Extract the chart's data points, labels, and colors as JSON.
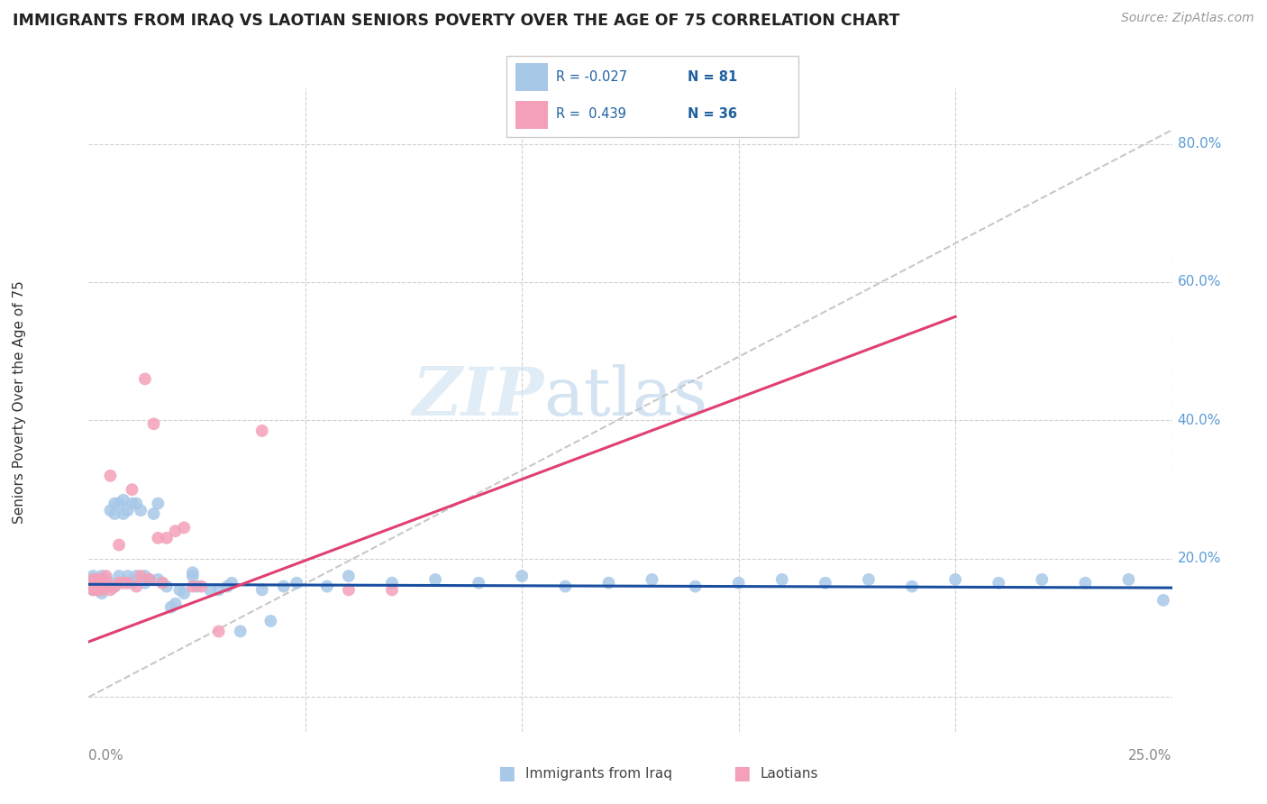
{
  "title": "IMMIGRANTS FROM IRAQ VS LAOTIAN SENIORS POVERTY OVER THE AGE OF 75 CORRELATION CHART",
  "source": "Source: ZipAtlas.com",
  "ylabel": "Seniors Poverty Over the Age of 75",
  "right_yticks": [
    "80.0%",
    "60.0%",
    "40.0%",
    "20.0%"
  ],
  "right_ytick_vals": [
    0.8,
    0.6,
    0.4,
    0.2
  ],
  "xlim": [
    0.0,
    0.25
  ],
  "ylim": [
    -0.05,
    0.88
  ],
  "watermark_zip": "ZIP",
  "watermark_atlas": "atlas",
  "color_iraq": "#a8c8e8",
  "color_laotian": "#f4a0b8",
  "color_iraq_line": "#1a4fa0",
  "color_laotian_line": "#e04070",
  "color_diag_line": "#c8c8c8",
  "iraq_x": [
    0.001,
    0.001,
    0.001,
    0.001,
    0.001,
    0.002,
    0.002,
    0.002,
    0.002,
    0.002,
    0.002,
    0.003,
    0.003,
    0.003,
    0.003,
    0.004,
    0.004,
    0.004,
    0.004,
    0.005,
    0.005,
    0.005,
    0.006,
    0.006,
    0.006,
    0.007,
    0.007,
    0.008,
    0.008,
    0.009,
    0.009,
    0.01,
    0.01,
    0.011,
    0.011,
    0.012,
    0.013,
    0.013,
    0.014,
    0.015,
    0.016,
    0.016,
    0.017,
    0.018,
    0.019,
    0.02,
    0.021,
    0.022,
    0.024,
    0.024,
    0.025,
    0.028,
    0.03,
    0.032,
    0.033,
    0.035,
    0.04,
    0.042,
    0.045,
    0.048,
    0.055,
    0.06,
    0.07,
    0.08,
    0.09,
    0.1,
    0.11,
    0.12,
    0.13,
    0.14,
    0.15,
    0.16,
    0.17,
    0.18,
    0.19,
    0.2,
    0.21,
    0.22,
    0.23,
    0.24,
    0.248
  ],
  "iraq_y": [
    0.155,
    0.16,
    0.165,
    0.17,
    0.175,
    0.155,
    0.16,
    0.165,
    0.17,
    0.155,
    0.16,
    0.15,
    0.16,
    0.175,
    0.165,
    0.16,
    0.165,
    0.17,
    0.16,
    0.165,
    0.27,
    0.16,
    0.28,
    0.265,
    0.16,
    0.28,
    0.175,
    0.285,
    0.265,
    0.175,
    0.27,
    0.28,
    0.165,
    0.28,
    0.175,
    0.27,
    0.165,
    0.175,
    0.17,
    0.265,
    0.28,
    0.17,
    0.165,
    0.16,
    0.13,
    0.135,
    0.155,
    0.15,
    0.18,
    0.175,
    0.16,
    0.155,
    0.155,
    0.16,
    0.165,
    0.095,
    0.155,
    0.11,
    0.16,
    0.165,
    0.16,
    0.175,
    0.165,
    0.17,
    0.165,
    0.175,
    0.16,
    0.165,
    0.17,
    0.16,
    0.165,
    0.17,
    0.165,
    0.17,
    0.16,
    0.17,
    0.165,
    0.17,
    0.165,
    0.17,
    0.14
  ],
  "laotian_x": [
    0.001,
    0.001,
    0.001,
    0.001,
    0.002,
    0.002,
    0.002,
    0.003,
    0.003,
    0.003,
    0.004,
    0.004,
    0.005,
    0.005,
    0.006,
    0.007,
    0.007,
    0.008,
    0.009,
    0.01,
    0.011,
    0.012,
    0.013,
    0.014,
    0.015,
    0.016,
    0.017,
    0.018,
    0.02,
    0.022,
    0.024,
    0.026,
    0.03,
    0.04,
    0.06,
    0.07
  ],
  "laotian_y": [
    0.155,
    0.16,
    0.165,
    0.17,
    0.155,
    0.16,
    0.17,
    0.155,
    0.16,
    0.17,
    0.165,
    0.175,
    0.155,
    0.32,
    0.16,
    0.22,
    0.165,
    0.165,
    0.165,
    0.3,
    0.16,
    0.175,
    0.46,
    0.17,
    0.395,
    0.23,
    0.165,
    0.23,
    0.24,
    0.245,
    0.16,
    0.16,
    0.095,
    0.385,
    0.155,
    0.155
  ],
  "iraq_line_x": [
    0.0,
    0.25
  ],
  "iraq_line_y": [
    0.163,
    0.158
  ],
  "laotian_line_x": [
    0.0,
    0.2
  ],
  "laotian_line_y": [
    0.08,
    0.55
  ],
  "diag_line_x": [
    0.0,
    0.25
  ],
  "diag_line_y": [
    0.0,
    0.82
  ]
}
